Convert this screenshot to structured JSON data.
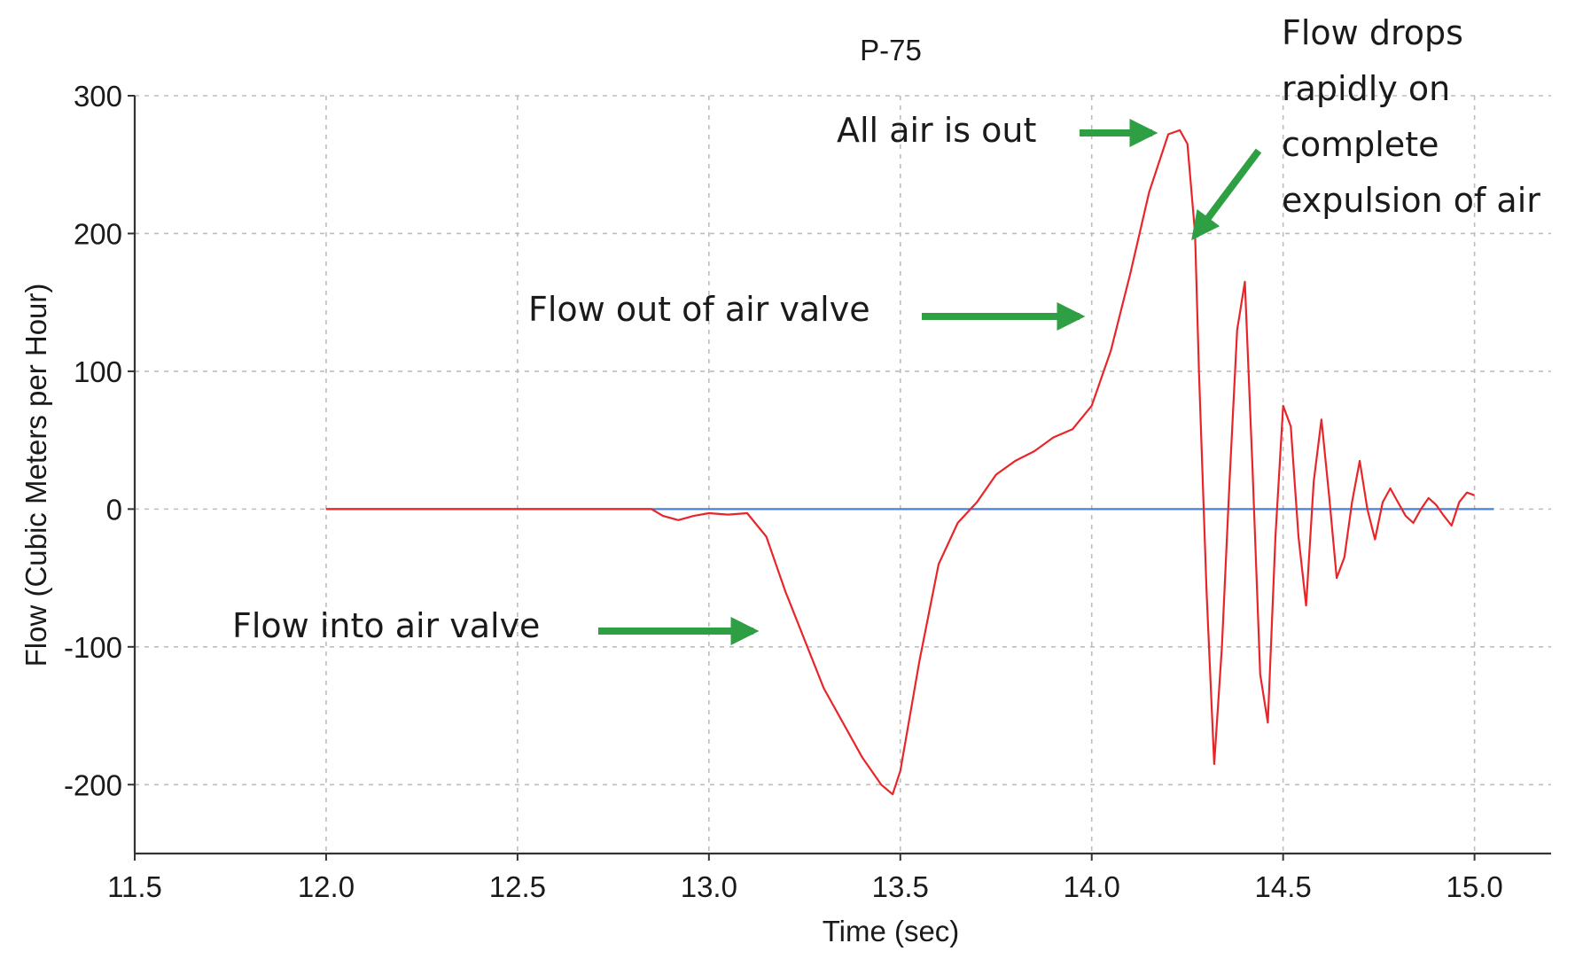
{
  "chart_data": {
    "type": "line",
    "title": "P-75",
    "xlabel": "Time (sec)",
    "ylabel": "Flow (Cubic Meters per Hour)",
    "xlim": [
      11.5,
      15.2
    ],
    "ylim": [
      -250,
      300
    ],
    "xticks": [
      "11.5",
      "12.0",
      "12.5",
      "13.0",
      "13.5",
      "14.0",
      "14.5",
      "15.0"
    ],
    "yticks": [
      "300",
      "200",
      "100",
      "0",
      "-100",
      "-200"
    ],
    "grid": true,
    "reference_line": {
      "y": 0,
      "x_start": 12.0,
      "x_end": 15.05,
      "color": "#4a7fd4"
    },
    "series": [
      {
        "color": "#e8262a",
        "x": [
          12.0,
          12.5,
          12.85,
          12.88,
          12.92,
          12.96,
          13.0,
          13.05,
          13.1,
          13.15,
          13.2,
          13.3,
          13.4,
          13.45,
          13.48,
          13.5,
          13.55,
          13.6,
          13.65,
          13.7,
          13.75,
          13.8,
          13.85,
          13.9,
          13.95,
          14.0,
          14.05,
          14.1,
          14.15,
          14.2,
          14.23,
          14.25,
          14.27,
          14.28,
          14.3,
          14.32,
          14.34,
          14.36,
          14.38,
          14.4,
          14.42,
          14.44,
          14.46,
          14.48,
          14.5,
          14.52,
          14.54,
          14.56,
          14.58,
          14.6,
          14.62,
          14.64,
          14.66,
          14.68,
          14.7,
          14.72,
          14.74,
          14.76,
          14.78,
          14.8,
          14.82,
          14.84,
          14.86,
          14.88,
          14.9,
          14.92,
          14.94,
          14.96,
          14.98,
          15.0
        ],
        "y": [
          0,
          0,
          0,
          -5,
          -8,
          -5,
          -3,
          -4,
          -3,
          -20,
          -60,
          -130,
          -180,
          -200,
          -207,
          -190,
          -110,
          -40,
          -10,
          5,
          25,
          35,
          42,
          52,
          58,
          75,
          115,
          170,
          230,
          272,
          275,
          265,
          200,
          100,
          -60,
          -185,
          -100,
          20,
          130,
          165,
          30,
          -120,
          -155,
          -20,
          75,
          60,
          -20,
          -70,
          20,
          65,
          10,
          -50,
          -35,
          5,
          35,
          0,
          -22,
          5,
          15,
          5,
          -5,
          -10,
          0,
          8,
          3,
          -5,
          -12,
          5,
          12,
          10
        ]
      }
    ],
    "annotations": [
      {
        "text": "All air is out",
        "arrow_to": [
          14.22,
          275
        ]
      },
      {
        "text": [
          "Flow drops",
          "rapidly on",
          "complete",
          "expulsion of air"
        ],
        "arrow_to": [
          14.28,
          195
        ]
      },
      {
        "text": "Flow out of air valve",
        "arrow_to": [
          14.01,
          140
        ]
      },
      {
        "text": "Flow into air valve",
        "arrow_to": [
          13.22,
          -85
        ]
      }
    ]
  }
}
